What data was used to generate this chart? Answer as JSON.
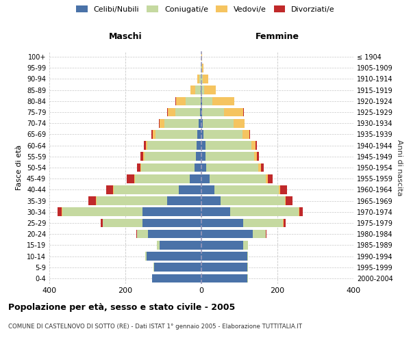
{
  "age_groups": [
    "0-4",
    "5-9",
    "10-14",
    "15-19",
    "20-24",
    "25-29",
    "30-34",
    "35-39",
    "40-44",
    "45-49",
    "50-54",
    "55-59",
    "60-64",
    "65-69",
    "70-74",
    "75-79",
    "80-84",
    "85-89",
    "90-94",
    "95-99",
    "100+"
  ],
  "birth_years": [
    "2000-2004",
    "1995-1999",
    "1990-1994",
    "1985-1989",
    "1980-1984",
    "1975-1979",
    "1970-1974",
    "1965-1969",
    "1960-1964",
    "1955-1959",
    "1950-1954",
    "1945-1949",
    "1940-1944",
    "1935-1939",
    "1930-1934",
    "1925-1929",
    "1920-1924",
    "1915-1919",
    "1910-1914",
    "1905-1909",
    "≤ 1904"
  ],
  "male_celibi": [
    130,
    125,
    145,
    110,
    140,
    155,
    155,
    90,
    60,
    30,
    18,
    14,
    12,
    10,
    8,
    4,
    2,
    1,
    0,
    0,
    0
  ],
  "male_coniugati": [
    0,
    2,
    2,
    8,
    30,
    105,
    210,
    185,
    170,
    145,
    140,
    135,
    130,
    110,
    90,
    65,
    40,
    15,
    6,
    1,
    0
  ],
  "male_vedovi": [
    0,
    0,
    0,
    0,
    0,
    0,
    2,
    2,
    2,
    2,
    3,
    4,
    4,
    8,
    12,
    20,
    25,
    12,
    4,
    1,
    0
  ],
  "male_divorziati": [
    0,
    0,
    0,
    0,
    2,
    4,
    12,
    20,
    18,
    20,
    8,
    8,
    6,
    4,
    2,
    1,
    1,
    0,
    0,
    0,
    0
  ],
  "female_celibi": [
    120,
    120,
    120,
    110,
    135,
    110,
    75,
    50,
    35,
    22,
    12,
    10,
    10,
    6,
    3,
    2,
    1,
    0,
    0,
    0,
    0
  ],
  "female_coniugati": [
    2,
    2,
    2,
    12,
    35,
    105,
    180,
    170,
    168,
    148,
    138,
    128,
    122,
    102,
    82,
    58,
    28,
    8,
    4,
    1,
    0
  ],
  "female_vedovi": [
    0,
    0,
    0,
    0,
    0,
    2,
    2,
    2,
    4,
    4,
    6,
    8,
    10,
    18,
    28,
    50,
    58,
    30,
    14,
    4,
    1
  ],
  "female_divorziati": [
    0,
    0,
    0,
    0,
    2,
    4,
    10,
    18,
    18,
    14,
    8,
    6,
    4,
    2,
    1,
    1,
    0,
    0,
    0,
    0,
    0
  ],
  "color_celibi": "#4a72a8",
  "color_coniugati": "#c5d9a0",
  "color_vedovi": "#f5c460",
  "color_divorziati": "#c0292a",
  "title": "Popolazione per età, sesso e stato civile - 2005",
  "subtitle": "COMUNE DI CASTELNOVO DI SOTTO (RE) - Dati ISTAT 1° gennaio 2005 - Elaborazione TUTTITALIA.IT",
  "xlabel_left": "Maschi",
  "xlabel_right": "Femmine",
  "ylabel": "Fasce di età",
  "ylabel_right": "Anni di nascita",
  "xlim": 400,
  "background_color": "#ffffff",
  "grid_color": "#c8c8c8",
  "center_line_color": "#9999bb"
}
